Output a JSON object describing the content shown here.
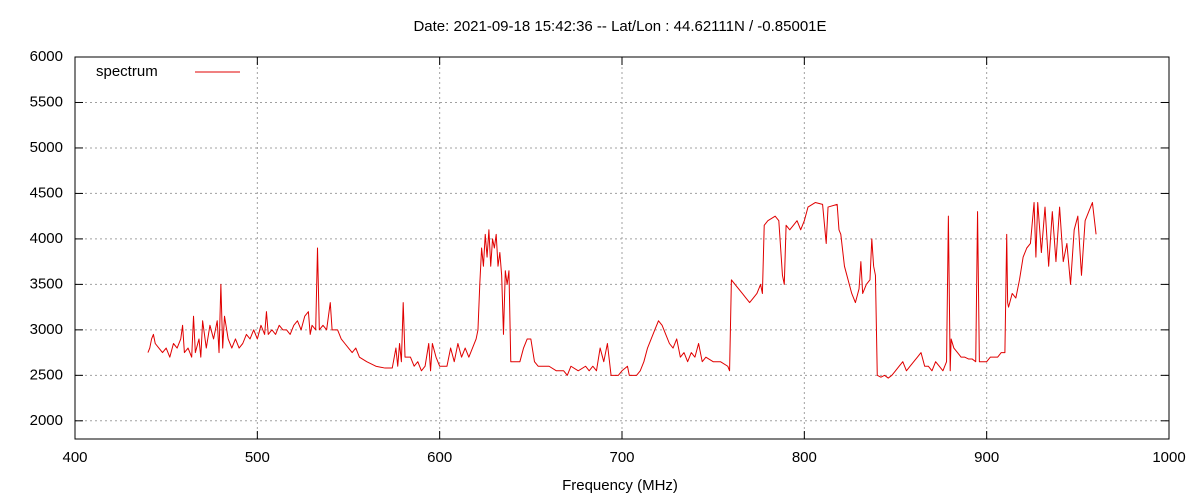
{
  "chart_data": {
    "type": "line",
    "title": "Date: 2021-09-18 15:42:36  --  Lat/Lon : 44.62111N / -0.85001E",
    "x_label": "Frequency (MHz)",
    "xlim": [
      400,
      1000
    ],
    "xticks": [
      400,
      500,
      600,
      700,
      800,
      900,
      1000
    ],
    "ylim": [
      1800,
      6000
    ],
    "yticks": [
      2000,
      2500,
      3000,
      3500,
      4000,
      4500,
      5000,
      5500,
      6000
    ],
    "grid": true,
    "legend": "top-left",
    "x": [
      440,
      441,
      442,
      443,
      444,
      446,
      448,
      450,
      452,
      454,
      456,
      458,
      459,
      460,
      462,
      464,
      465,
      466,
      468,
      469,
      470,
      472,
      474,
      476,
      478,
      479,
      480,
      481,
      482,
      484,
      486,
      488,
      490,
      492,
      494,
      496,
      498,
      500,
      502,
      504,
      505,
      506,
      508,
      510,
      512,
      514,
      516,
      518,
      520,
      522,
      524,
      526,
      528,
      529,
      530,
      532,
      533,
      534,
      536,
      538,
      540,
      541,
      544,
      546,
      548,
      550,
      552,
      554,
      556,
      560,
      565,
      570,
      574,
      576,
      577,
      578,
      579,
      580,
      581,
      584,
      586,
      588,
      590,
      592,
      594,
      595,
      596,
      598,
      600,
      604,
      606,
      608,
      610,
      612,
      614,
      616,
      618,
      620,
      621,
      622,
      623,
      624,
      625,
      626,
      627,
      628,
      629,
      630,
      631,
      632,
      633,
      634,
      635,
      636,
      637,
      638,
      639,
      640,
      642,
      644,
      646,
      648,
      650,
      652,
      654,
      656,
      660,
      664,
      668,
      670,
      672,
      676,
      680,
      682,
      684,
      686,
      688,
      690,
      692,
      694,
      696,
      698,
      700,
      703,
      704,
      706,
      708,
      710,
      712,
      714,
      716,
      718,
      720,
      722,
      724,
      726,
      728,
      730,
      732,
      734,
      736,
      738,
      740,
      742,
      744,
      746,
      750,
      754,
      758,
      759,
      760,
      762,
      764,
      766,
      768,
      770,
      772,
      774,
      776,
      777,
      778,
      780,
      784,
      786,
      788,
      789,
      790,
      792,
      794,
      796,
      798,
      800,
      802,
      806,
      810,
      812,
      813,
      818,
      819,
      820,
      822,
      824,
      826,
      828,
      830,
      831,
      832,
      834,
      836,
      837,
      838,
      839,
      840,
      842,
      844,
      846,
      848,
      850,
      852,
      854,
      856,
      858,
      860,
      862,
      864,
      866,
      868,
      870,
      872,
      874,
      876,
      878,
      879,
      880,
      880.5,
      882,
      884,
      886,
      888,
      890,
      892,
      894,
      895,
      896,
      898,
      900,
      902,
      906,
      908,
      910,
      911,
      911.5,
      912,
      914,
      916,
      918,
      920,
      922,
      924,
      926,
      927,
      928,
      930,
      932,
      934,
      936,
      938,
      940,
      942,
      944,
      946,
      948,
      950,
      952,
      954,
      956,
      958,
      960
    ],
    "series": [
      {
        "name": "spectrum",
        "color": "#e00000",
        "values": [
          2750,
          2800,
          2900,
          2950,
          2850,
          2800,
          2750,
          2800,
          2700,
          2850,
          2800,
          2900,
          3050,
          2750,
          2800,
          2700,
          3150,
          2750,
          2900,
          2700,
          3100,
          2800,
          3050,
          2900,
          3100,
          2750,
          3500,
          2800,
          3150,
          2900,
          2800,
          2900,
          2800,
          2850,
          2950,
          2900,
          3000,
          2900,
          3050,
          2950,
          3200,
          2950,
          3000,
          2950,
          3050,
          3000,
          3000,
          2950,
          3050,
          3100,
          3000,
          3150,
          3200,
          2950,
          3050,
          3000,
          3900,
          3000,
          3050,
          3000,
          3300,
          3000,
          3000,
          2900,
          2850,
          2800,
          2750,
          2800,
          2700,
          2650,
          2600,
          2580,
          2580,
          2800,
          2600,
          2850,
          2650,
          3300,
          2700,
          2700,
          2600,
          2650,
          2550,
          2600,
          2850,
          2550,
          2850,
          2700,
          2600,
          2600,
          2800,
          2650,
          2850,
          2700,
          2800,
          2700,
          2800,
          2900,
          3000,
          3500,
          3900,
          3700,
          4050,
          3800,
          4100,
          3700,
          4000,
          3900,
          4050,
          3700,
          3850,
          3600,
          2950,
          3650,
          3500,
          3650,
          2650,
          2650,
          2650,
          2650,
          2800,
          2900,
          2900,
          2650,
          2600,
          2600,
          2600,
          2550,
          2550,
          2500,
          2600,
          2550,
          2600,
          2550,
          2600,
          2550,
          2800,
          2650,
          2850,
          2500,
          2500,
          2500,
          2550,
          2600,
          2500,
          2500,
          2500,
          2550,
          2650,
          2800,
          2900,
          3000,
          3100,
          3050,
          2950,
          2850,
          2800,
          2900,
          2700,
          2750,
          2650,
          2750,
          2700,
          2850,
          2650,
          2700,
          2650,
          2650,
          2600,
          2550,
          3550,
          3500,
          3450,
          3400,
          3350,
          3300,
          3350,
          3400,
          3500,
          3400,
          4150,
          4200,
          4250,
          4200,
          3600,
          3500,
          4150,
          4100,
          4150,
          4200,
          4100,
          4200,
          4350,
          4400,
          4380,
          3950,
          4350,
          4380,
          4100,
          4050,
          3700,
          3550,
          3400,
          3300,
          3450,
          3750,
          3400,
          3500,
          3550,
          4000,
          3700,
          3600,
          2500,
          2480,
          2500,
          2470,
          2500,
          2550,
          2600,
          2650,
          2550,
          2600,
          2650,
          2700,
          2750,
          2600,
          2600,
          2550,
          2650,
          2600,
          2550,
          2650,
          4250,
          2550,
          2900,
          2800,
          2750,
          2700,
          2700,
          2680,
          2680,
          2650,
          4300,
          2650,
          2650,
          2650,
          2700,
          2700,
          2750,
          2750,
          4050,
          3300,
          3250,
          3400,
          3350,
          3550,
          3800,
          3900,
          3950,
          4400,
          3800,
          4400,
          3850,
          4350,
          3700,
          4300,
          3750,
          4350,
          3750,
          3950,
          3500,
          4100,
          4250,
          3600,
          4200,
          4300,
          4400,
          4050
        ]
      }
    ]
  }
}
